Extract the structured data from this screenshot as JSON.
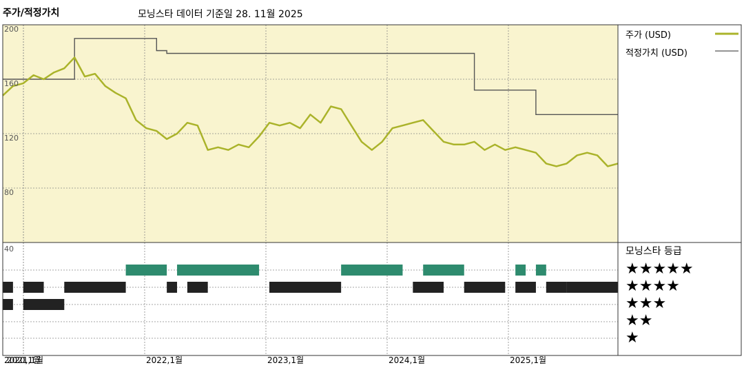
{
  "header": {
    "title": "주가/적정가치",
    "subtitle": "모닝스타 데이터 기준일 28. 11월 2025"
  },
  "legend": {
    "price_label": "주가 (USD)",
    "fair_value_label": "적정가치 (USD)",
    "price_color": "#aab32a",
    "fair_value_color": "#555555"
  },
  "rating_panel": {
    "title": "모닝스타 등급",
    "levels": [
      "★★★★★",
      "★★★★",
      "★★★",
      "★★",
      "★"
    ],
    "band_colors": {
      "5": "#2e8b6e",
      "4": "#222222",
      "3": "#222222"
    }
  },
  "chart_data": {
    "type": "line",
    "y_ticks": [
      "200",
      "160",
      "120",
      "80"
    ],
    "lower_tick": "40",
    "x_ticks": [
      "2020,1월",
      "2021,1월",
      "2022,1월",
      "2023,1월",
      "2024,1월",
      "2025,1월"
    ],
    "ylim": [
      40,
      200
    ],
    "x_range": [
      "2020-11",
      "2025-11"
    ],
    "price": [
      [
        "2020-11",
        148
      ],
      [
        "2020-12",
        155
      ],
      [
        "2021-01",
        157
      ],
      [
        "2021-02",
        163
      ],
      [
        "2021-03",
        160
      ],
      [
        "2021-04",
        165
      ],
      [
        "2021-05",
        168
      ],
      [
        "2021-06",
        176
      ],
      [
        "2021-07",
        162
      ],
      [
        "2021-08",
        164
      ],
      [
        "2021-09",
        155
      ],
      [
        "2021-10",
        150
      ],
      [
        "2021-11",
        146
      ],
      [
        "2021-12",
        130
      ],
      [
        "2022-01",
        124
      ],
      [
        "2022-02",
        122
      ],
      [
        "2022-03",
        116
      ],
      [
        "2022-04",
        120
      ],
      [
        "2022-05",
        128
      ],
      [
        "2022-06",
        126
      ],
      [
        "2022-07",
        108
      ],
      [
        "2022-08",
        110
      ],
      [
        "2022-09",
        108
      ],
      [
        "2022-10",
        112
      ],
      [
        "2022-11",
        110
      ],
      [
        "2022-12",
        118
      ],
      [
        "2023-01",
        128
      ],
      [
        "2023-02",
        126
      ],
      [
        "2023-03",
        128
      ],
      [
        "2023-04",
        124
      ],
      [
        "2023-05",
        134
      ],
      [
        "2023-06",
        128
      ],
      [
        "2023-07",
        140
      ],
      [
        "2023-08",
        138
      ],
      [
        "2023-09",
        126
      ],
      [
        "2023-10",
        114
      ],
      [
        "2023-11",
        108
      ],
      [
        "2023-12",
        114
      ],
      [
        "2024-01",
        124
      ],
      [
        "2024-02",
        126
      ],
      [
        "2024-03",
        128
      ],
      [
        "2024-04",
        130
      ],
      [
        "2024-05",
        122
      ],
      [
        "2024-06",
        114
      ],
      [
        "2024-07",
        112
      ],
      [
        "2024-08",
        112
      ],
      [
        "2024-09",
        114
      ],
      [
        "2024-10",
        108
      ],
      [
        "2024-11",
        112
      ],
      [
        "2024-12",
        108
      ],
      [
        "2025-01",
        110
      ],
      [
        "2025-02",
        108
      ],
      [
        "2025-03",
        106
      ],
      [
        "2025-04",
        98
      ],
      [
        "2025-05",
        96
      ],
      [
        "2025-06",
        98
      ],
      [
        "2025-07",
        104
      ],
      [
        "2025-08",
        106
      ],
      [
        "2025-09",
        104
      ],
      [
        "2025-10",
        96
      ],
      [
        "2025-11",
        98
      ]
    ],
    "fair_value": [
      [
        "2020-11",
        160
      ],
      [
        "2021-06",
        160
      ],
      [
        "2021-06",
        190
      ],
      [
        "2022-02",
        190
      ],
      [
        "2022-02",
        181
      ],
      [
        "2022-03",
        181
      ],
      [
        "2022-03",
        179
      ],
      [
        "2024-09",
        179
      ],
      [
        "2024-09",
        152
      ],
      [
        "2025-03",
        152
      ],
      [
        "2025-03",
        134
      ],
      [
        "2025-11",
        134
      ]
    ],
    "rating_bands": {
      "5": [
        [
          "2021-11",
          "2022-03"
        ],
        [
          "2022-04",
          "2022-12"
        ],
        [
          "2023-08",
          "2024-02"
        ],
        [
          "2024-04",
          "2024-08"
        ],
        [
          "2025-01",
          "2025-02"
        ],
        [
          "2025-03",
          "2025-04"
        ]
      ],
      "4": [
        [
          "2020-11",
          "2020-12"
        ],
        [
          "2021-01",
          "2021-03"
        ],
        [
          "2021-05",
          "2021-11"
        ],
        [
          "2022-03",
          "2022-04"
        ],
        [
          "2022-05",
          "2022-07"
        ],
        [
          "2023-01",
          "2023-08"
        ],
        [
          "2024-03",
          "2024-06"
        ],
        [
          "2024-08",
          "2024-12"
        ],
        [
          "2025-01",
          "2025-03"
        ],
        [
          "2025-04",
          "2025-06"
        ],
        [
          "2025-06",
          "2025-11"
        ]
      ],
      "3": [
        [
          "2020-11",
          "2020-12"
        ],
        [
          "2021-01",
          "2021-05"
        ]
      ]
    }
  }
}
